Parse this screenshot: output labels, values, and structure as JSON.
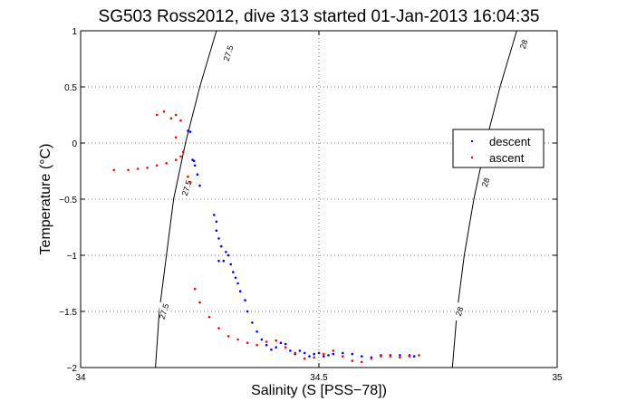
{
  "chart_data": {
    "type": "scatter",
    "title": "SG503 Ross2012, dive 313 started 01-Jan-2013 16:04:35",
    "xlabel": "Salinity (S [PSS−78])",
    "ylabel": "Temperature (°C)",
    "xlim": [
      34,
      35
    ],
    "ylim": [
      -2,
      1
    ],
    "x_ticks": [
      {
        "value": 34,
        "label": "34"
      },
      {
        "value": 34.5,
        "label": "34.5"
      },
      {
        "value": 35,
        "label": "35"
      }
    ],
    "y_ticks": [
      {
        "value": -2,
        "label": "−2"
      },
      {
        "value": -1.5,
        "label": "−1.5"
      },
      {
        "value": -1,
        "label": "−1"
      },
      {
        "value": -0.5,
        "label": "−0.5"
      },
      {
        "value": 0,
        "label": "0"
      },
      {
        "value": 0.5,
        "label": "0.5"
      },
      {
        "value": 1,
        "label": "1"
      }
    ],
    "grid": true,
    "grid_style": "dotted",
    "legend_position": "right",
    "colors": {
      "descent": "#0000ff",
      "ascent": "#ff0000",
      "contour": "#000000"
    },
    "series": [
      {
        "name": "descent",
        "points": [
          [
            34.225,
            0.11
          ],
          [
            34.23,
            0.1
          ],
          [
            34.235,
            -0.15
          ],
          [
            34.238,
            -0.16
          ],
          [
            34.24,
            -0.2
          ],
          [
            34.245,
            -0.28
          ],
          [
            34.25,
            -0.38
          ],
          [
            34.28,
            -0.64
          ],
          [
            34.285,
            -0.7
          ],
          [
            34.285,
            -0.78
          ],
          [
            34.29,
            -0.85
          ],
          [
            34.295,
            -0.92
          ],
          [
            34.29,
            -1.05
          ],
          [
            34.3,
            -1.05
          ],
          [
            34.305,
            -0.97
          ],
          [
            34.31,
            -1.0
          ],
          [
            34.315,
            -1.08
          ],
          [
            34.32,
            -1.15
          ],
          [
            34.325,
            -1.2
          ],
          [
            34.33,
            -1.25
          ],
          [
            34.335,
            -1.32
          ],
          [
            34.345,
            -1.4
          ],
          [
            34.35,
            -1.5
          ],
          [
            34.36,
            -1.6
          ],
          [
            34.37,
            -1.68
          ],
          [
            34.38,
            -1.75
          ],
          [
            34.39,
            -1.8
          ],
          [
            34.4,
            -1.84
          ],
          [
            34.41,
            -1.82
          ],
          [
            34.42,
            -1.78
          ],
          [
            34.43,
            -1.79
          ],
          [
            34.44,
            -1.85
          ],
          [
            34.45,
            -1.88
          ],
          [
            34.46,
            -1.85
          ],
          [
            34.47,
            -1.87
          ],
          [
            34.48,
            -1.9
          ],
          [
            34.49,
            -1.88
          ],
          [
            34.5,
            -1.87
          ],
          [
            34.51,
            -1.9
          ],
          [
            34.52,
            -1.89
          ],
          [
            34.53,
            -1.88
          ],
          [
            34.55,
            -1.87
          ],
          [
            34.57,
            -1.88
          ],
          [
            34.59,
            -1.9
          ],
          [
            34.61,
            -1.91
          ],
          [
            34.63,
            -1.89
          ],
          [
            34.65,
            -1.89
          ],
          [
            34.67,
            -1.89
          ],
          [
            34.69,
            -1.89
          ],
          [
            34.7,
            -1.9
          ]
        ]
      },
      {
        "name": "ascent",
        "points": [
          [
            34.07,
            -0.24
          ],
          [
            34.1,
            -0.24
          ],
          [
            34.12,
            -0.23
          ],
          [
            34.14,
            -0.22
          ],
          [
            34.16,
            -0.2
          ],
          [
            34.18,
            -0.18
          ],
          [
            34.2,
            -0.15
          ],
          [
            34.21,
            -0.12
          ],
          [
            34.215,
            -0.08
          ],
          [
            34.2,
            0.05
          ],
          [
            34.19,
            0.22
          ],
          [
            34.16,
            0.25
          ],
          [
            34.175,
            0.28
          ],
          [
            34.2,
            0.25
          ],
          [
            34.21,
            0.2
          ],
          [
            34.225,
            -0.3
          ],
          [
            34.23,
            -0.35
          ],
          [
            34.24,
            -1.3
          ],
          [
            34.25,
            -1.42
          ],
          [
            34.27,
            -1.55
          ],
          [
            34.29,
            -1.65
          ],
          [
            34.31,
            -1.72
          ],
          [
            34.33,
            -1.75
          ],
          [
            34.35,
            -1.78
          ],
          [
            34.37,
            -1.8
          ],
          [
            34.39,
            -1.77
          ],
          [
            34.41,
            -1.76
          ],
          [
            34.43,
            -1.82
          ],
          [
            34.45,
            -1.87
          ],
          [
            34.47,
            -1.92
          ],
          [
            34.49,
            -1.91
          ],
          [
            34.51,
            -1.88
          ],
          [
            34.53,
            -1.85
          ],
          [
            34.55,
            -1.9
          ],
          [
            34.57,
            -1.94
          ],
          [
            34.59,
            -1.95
          ],
          [
            34.61,
            -1.92
          ],
          [
            34.63,
            -1.9
          ],
          [
            34.65,
            -1.9
          ],
          [
            34.67,
            -1.91
          ],
          [
            34.69,
            -1.9
          ],
          [
            34.71,
            -1.89
          ]
        ]
      }
    ],
    "contours": [
      {
        "label": "27.5",
        "points": [
          [
            34.157,
            -2
          ],
          [
            34.165,
            -1.5
          ],
          [
            34.18,
            -1.0
          ],
          [
            34.195,
            -0.5
          ],
          [
            34.22,
            0.0
          ],
          [
            34.25,
            0.5
          ],
          [
            34.285,
            1.0
          ]
        ],
        "label_positions": [
          [
            34.175,
            -1.5
          ],
          [
            34.223,
            -0.4
          ],
          [
            34.31,
            0.8
          ]
        ]
      },
      {
        "label": "28",
        "points": [
          [
            34.78,
            -2
          ],
          [
            34.79,
            -1.5
          ],
          [
            34.805,
            -1.0
          ],
          [
            34.825,
            -0.5
          ],
          [
            34.85,
            0.0
          ],
          [
            34.88,
            0.5
          ],
          [
            34.915,
            1.0
          ]
        ],
        "label_positions": [
          [
            34.795,
            -1.5
          ],
          [
            34.85,
            -0.35
          ],
          [
            34.93,
            0.88
          ]
        ]
      }
    ]
  }
}
